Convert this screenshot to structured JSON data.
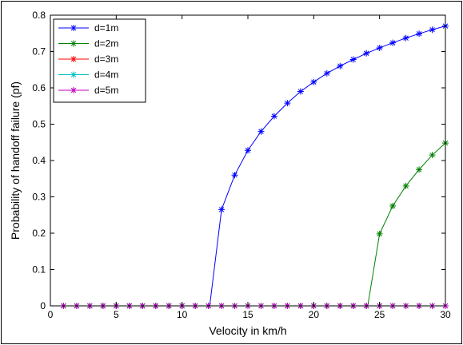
{
  "chart_data": {
    "type": "line",
    "title": "",
    "xlabel": "Velocity in km/h",
    "ylabel": "Probability of handoff failure (pf)",
    "xlim": [
      0,
      30
    ],
    "ylim": [
      0,
      0.8
    ],
    "xticks": [
      "0",
      "5",
      "10",
      "15",
      "20",
      "25",
      "30"
    ],
    "yticks": [
      "0",
      "0.1",
      "0.2",
      "0.3",
      "0.4",
      "0.5",
      "0.6",
      "0.7",
      "0.8"
    ],
    "grid": false,
    "legend_position": "top-left",
    "x": [
      1,
      2,
      3,
      4,
      5,
      6,
      7,
      8,
      9,
      10,
      11,
      12,
      13,
      14,
      15,
      16,
      17,
      18,
      19,
      20,
      21,
      22,
      23,
      24,
      25,
      26,
      27,
      28,
      29,
      30
    ],
    "series": [
      {
        "name": "d=1m",
        "color": "#0000ff",
        "values": [
          0,
          0,
          0,
          0,
          0,
          0,
          0,
          0,
          0,
          0,
          0,
          0,
          0.265,
          0.36,
          0.428,
          0.48,
          0.522,
          0.558,
          0.59,
          0.616,
          0.64,
          0.66,
          0.678,
          0.695,
          0.71,
          0.724,
          0.737,
          0.749,
          0.76,
          0.77
        ]
      },
      {
        "name": "d=2m",
        "color": "#008000",
        "values": [
          0,
          0,
          0,
          0,
          0,
          0,
          0,
          0,
          0,
          0,
          0,
          0,
          0,
          0,
          0,
          0,
          0,
          0,
          0,
          0,
          0,
          0,
          0,
          0,
          0.198,
          0.275,
          0.33,
          0.375,
          0.415,
          0.448
        ]
      },
      {
        "name": "d=3m",
        "color": "#ff0000",
        "values": [
          0,
          0,
          0,
          0,
          0,
          0,
          0,
          0,
          0,
          0,
          0,
          0,
          0,
          0,
          0,
          0,
          0,
          0,
          0,
          0,
          0,
          0,
          0,
          0,
          0,
          0,
          0,
          0,
          0,
          0
        ]
      },
      {
        "name": "d=4m",
        "color": "#00bfbf",
        "values": [
          0,
          0,
          0,
          0,
          0,
          0,
          0,
          0,
          0,
          0,
          0,
          0,
          0,
          0,
          0,
          0,
          0,
          0,
          0,
          0,
          0,
          0,
          0,
          0,
          0,
          0,
          0,
          0,
          0,
          0
        ]
      },
      {
        "name": "d=5m",
        "color": "#bf00bf",
        "values": [
          0,
          0,
          0,
          0,
          0,
          0,
          0,
          0,
          0,
          0,
          0,
          0,
          0,
          0,
          0,
          0,
          0,
          0,
          0,
          0,
          0,
          0,
          0,
          0,
          0,
          0,
          0,
          0,
          0,
          0
        ]
      }
    ],
    "threshold_crossings": {
      "d=1m": 12.1,
      "d=2m": 24.1
    }
  }
}
